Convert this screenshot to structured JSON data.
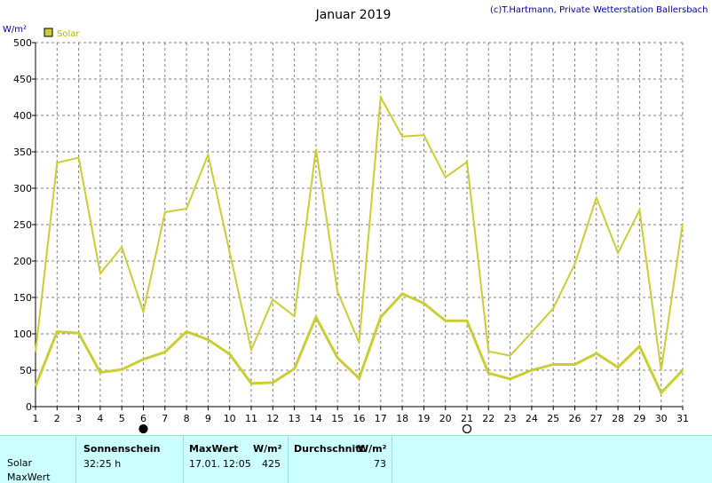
{
  "chart_data": {
    "type": "line",
    "title": "Januar 2019",
    "copyright": "(c)T.Hartmann, Private Wetterstation Ballersbach",
    "ylabel": "W/m²",
    "legend": [
      {
        "name": "Solar",
        "color": "#cccc33"
      }
    ],
    "x": [
      1,
      2,
      3,
      4,
      5,
      6,
      7,
      8,
      9,
      10,
      11,
      12,
      13,
      14,
      15,
      16,
      17,
      18,
      19,
      20,
      21,
      22,
      23,
      24,
      25,
      26,
      27,
      28,
      29,
      30,
      31
    ],
    "ylim": [
      0,
      500
    ],
    "yticks": [
      0,
      50,
      100,
      150,
      200,
      250,
      300,
      350,
      400,
      450,
      500
    ],
    "grid": true,
    "series": [
      {
        "role": "max",
        "values": [
          75,
          335,
          342,
          183,
          219,
          130,
          267,
          272,
          346,
          212,
          78,
          147,
          124,
          354,
          158,
          88,
          425,
          371,
          373,
          315,
          336,
          76,
          70,
          102,
          135,
          196,
          287,
          211,
          270,
          50,
          252
        ]
      },
      {
        "role": "mean",
        "values": [
          28,
          103,
          101,
          47,
          51,
          65,
          75,
          103,
          92,
          72,
          32,
          33,
          52,
          123,
          67,
          39,
          123,
          155,
          142,
          118,
          118,
          46,
          38,
          50,
          58,
          58,
          73,
          54,
          83,
          19,
          50
        ]
      }
    ],
    "moon_phases": [
      {
        "day": 6,
        "phase": "new"
      },
      {
        "day": 21,
        "phase": "full"
      }
    ]
  },
  "summary": {
    "rows": [
      "Solar",
      "MaxWert"
    ],
    "col_sunshine": {
      "header": "Sonnenschein",
      "value": "32:25 h"
    },
    "col_max": {
      "header": "MaxWert",
      "unit": "W/m²",
      "date": "17.01.",
      "time": "12:05",
      "value": "425"
    },
    "col_avg": {
      "header": "Durchschnitt",
      "unit": "W/m²",
      "value": "73"
    }
  }
}
